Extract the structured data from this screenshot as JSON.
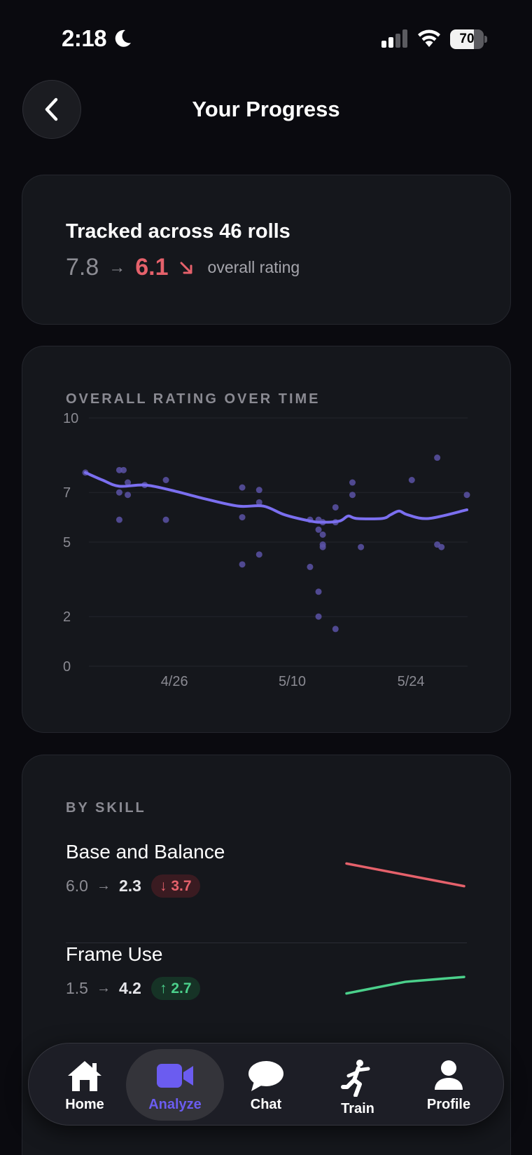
{
  "status_bar": {
    "time": "2:18",
    "battery": "70",
    "battery_level": 0.7
  },
  "header": {
    "title": "Your Progress"
  },
  "summary": {
    "title": "Tracked across 46 rolls",
    "from": "7.8",
    "arrow": "→",
    "to": "6.1",
    "caption": "overall rating"
  },
  "chart_card": {
    "label": "OVERALL RATING OVER TIME"
  },
  "chart_data": {
    "type": "scatter",
    "title": "OVERALL RATING OVER TIME",
    "xlabel": "",
    "ylabel": "",
    "ylim": [
      0,
      10
    ],
    "y_ticks": [
      "10",
      "7",
      "5",
      "2",
      "0"
    ],
    "x_ticks": [
      "4/26",
      "5/10",
      "5/24"
    ],
    "grid": true,
    "series": [
      {
        "kind": "points",
        "color": "#5a52a6",
        "points": [
          [
            0,
            7.8
          ],
          [
            4,
            7.9
          ],
          [
            4,
            7.0
          ],
          [
            4,
            5.9
          ],
          [
            4.5,
            7.9
          ],
          [
            5,
            7.4
          ],
          [
            5,
            6.9
          ],
          [
            7,
            7.3
          ],
          [
            9.5,
            7.5
          ],
          [
            9.5,
            5.9
          ],
          [
            18.5,
            7.2
          ],
          [
            18.5,
            6.0
          ],
          [
            18.5,
            4.1
          ],
          [
            20.5,
            7.1
          ],
          [
            20.5,
            6.6
          ],
          [
            20.5,
            4.5
          ],
          [
            26.5,
            4.0
          ],
          [
            26.5,
            5.9
          ],
          [
            27.5,
            5.9
          ],
          [
            27.5,
            5.5
          ],
          [
            27.5,
            3.0
          ],
          [
            27.5,
            2.0
          ],
          [
            28,
            5.8
          ],
          [
            28,
            5.3
          ],
          [
            28,
            4.8
          ],
          [
            28,
            4.9
          ],
          [
            29.5,
            6.4
          ],
          [
            29.5,
            5.8
          ],
          [
            29.5,
            1.5
          ],
          [
            31.5,
            6.9
          ],
          [
            31.5,
            7.4
          ],
          [
            32.5,
            4.8
          ],
          [
            38.5,
            7.5
          ],
          [
            41.5,
            8.4
          ],
          [
            41.5,
            4.9
          ],
          [
            42,
            4.8
          ],
          [
            45,
            6.9
          ]
        ]
      },
      {
        "kind": "trend",
        "color": "#7b6ff0",
        "points": [
          [
            0,
            7.8
          ],
          [
            2,
            7.5
          ],
          [
            4,
            7.25
          ],
          [
            7,
            7.3
          ],
          [
            10,
            7.1
          ],
          [
            14,
            6.75
          ],
          [
            18,
            6.45
          ],
          [
            21,
            6.45
          ],
          [
            23.5,
            6.1
          ],
          [
            26.5,
            5.85
          ],
          [
            28,
            5.8
          ],
          [
            30,
            5.85
          ],
          [
            31,
            6.05
          ],
          [
            32,
            5.95
          ],
          [
            35,
            5.95
          ],
          [
            36,
            6.1
          ],
          [
            37,
            6.25
          ],
          [
            38,
            6.1
          ],
          [
            40.5,
            5.95
          ],
          [
            45,
            6.3
          ]
        ]
      }
    ],
    "x_domain": [
      0,
      45
    ],
    "x_tick_positions": [
      10.5,
      24.4,
      38.4
    ]
  },
  "skills": {
    "label": "BY SKILL",
    "items": [
      {
        "name": "Base and Balance",
        "from": "6.0",
        "to": "2.3",
        "delta": "3.7",
        "direction": "down",
        "color": "#e5616b",
        "spark": [
          6.0,
          2.3
        ]
      },
      {
        "name": "Frame Use",
        "from": "1.5",
        "to": "4.2",
        "delta": "2.7",
        "direction": "up",
        "color": "#4bd08b",
        "spark": [
          1.5,
          3.4,
          4.2
        ]
      }
    ]
  },
  "tabs": [
    {
      "label": "Home",
      "icon": "home-icon",
      "active": false
    },
    {
      "label": "Analyze",
      "icon": "video-camera-icon",
      "active": true
    },
    {
      "label": "Chat",
      "icon": "chat-bubble-icon",
      "active": false
    },
    {
      "label": "Train",
      "icon": "running-figure-icon",
      "active": false
    },
    {
      "label": "Profile",
      "icon": "person-icon",
      "active": false
    }
  ],
  "accent_color": "#6b5cf0"
}
